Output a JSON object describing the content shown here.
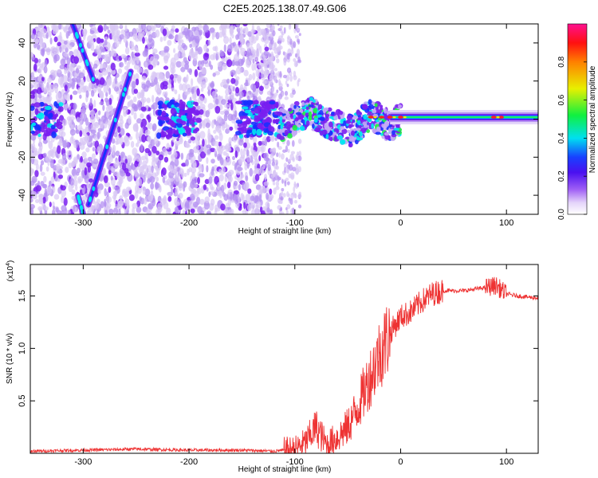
{
  "title": "C2E5.2025.138.07.49.G06",
  "chart_data": [
    {
      "type": "heatmap",
      "xlabel": "Height of straight line (km)",
      "ylabel": "Frequency (Hz)",
      "xlim": [
        -350,
        130
      ],
      "ylim": [
        -50,
        50
      ],
      "x_ticks": [
        -300,
        -200,
        -100,
        0,
        100
      ],
      "y_ticks": [
        -40,
        -20,
        0,
        20,
        40
      ],
      "colorbar": {
        "label": "Normalized spectral amplitude",
        "range": [
          0,
          1
        ],
        "ticks": [
          "0.0",
          "0.2",
          "0.4",
          "0.6",
          "0.8"
        ]
      },
      "features": [
        {
          "kind": "diagonal-streak",
          "x": [
            -310,
            -290
          ],
          "y": [
            50,
            20
          ]
        },
        {
          "kind": "diagonal-streak",
          "x": [
            -305,
            -300
          ],
          "y": [
            -40,
            -50
          ]
        },
        {
          "kind": "diagonal-streak",
          "x": [
            -295,
            -255
          ],
          "y": [
            -45,
            25
          ]
        },
        {
          "kind": "stable-band",
          "x": [
            -10,
            130
          ],
          "y_center": 1
        }
      ],
      "colors": [
        "#ffffff",
        "#d9c8f5",
        "#7a1ef0",
        "#1830ff",
        "#00e8f0",
        "#20f040",
        "#f0e800",
        "#ff2020"
      ]
    },
    {
      "type": "line",
      "xlabel": "Height of straight line (km)",
      "ylabel": "SNR (10 * v/v)",
      "y_multiplier": "(x10^4)",
      "xlim": [
        -350,
        130
      ],
      "ylim": [
        0,
        1.8
      ],
      "x_ticks": [
        -300,
        -200,
        -100,
        0,
        100
      ],
      "y_ticks": [
        0.5,
        1.0,
        1.5
      ],
      "series": [
        {
          "color": "#ee3333",
          "x": [
            -350,
            -300,
            -250,
            -200,
            -150,
            -120,
            -100,
            -90,
            -80,
            -70,
            -60,
            -50,
            -40,
            -30,
            -20,
            -10,
            0,
            10,
            20,
            30,
            40,
            60,
            80,
            90,
            100,
            110,
            130
          ],
          "y": [
            0.02,
            0.03,
            0.04,
            0.03,
            0.03,
            0.02,
            0.04,
            0.1,
            0.25,
            0.08,
            0.15,
            0.25,
            0.45,
            0.7,
            0.95,
            1.15,
            1.3,
            1.35,
            1.45,
            1.52,
            1.55,
            1.55,
            1.58,
            1.6,
            1.52,
            1.5,
            1.48
          ]
        }
      ]
    }
  ]
}
